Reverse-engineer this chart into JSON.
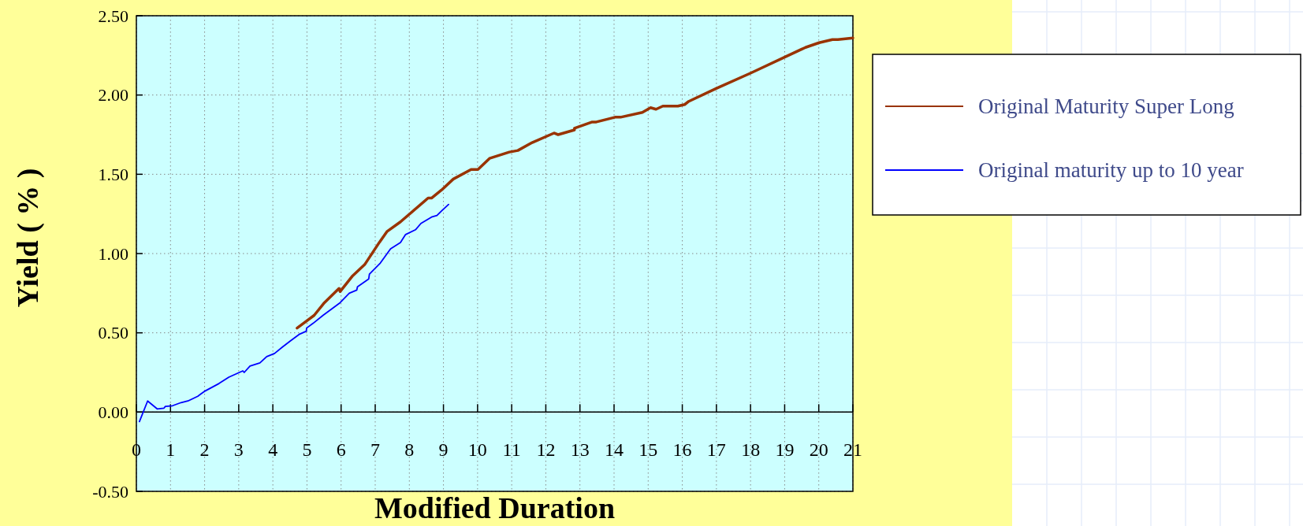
{
  "chart_data": {
    "type": "line",
    "xlabel": "Modified Duration",
    "ylabel": "Yield ( % )",
    "xlim": [
      0,
      21
    ],
    "xticks": [
      0,
      1,
      2,
      3,
      4,
      5,
      6,
      7,
      8,
      9,
      10,
      11,
      12,
      13,
      14,
      15,
      16,
      17,
      18,
      19,
      20,
      21
    ],
    "ylim": [
      -0.5,
      2.5
    ],
    "yticks": [
      {
        "value": -0.5,
        "label": "-0.50"
      },
      {
        "value": 0,
        "label": "0.00"
      },
      {
        "value": 0.5,
        "label": "0.50"
      },
      {
        "value": 1,
        "label": "1.00"
      },
      {
        "value": 1.5,
        "label": "1.50"
      },
      {
        "value": 2,
        "label": "2.00"
      },
      {
        "value": 2.5,
        "label": "2.50"
      }
    ],
    "grid": true,
    "legend": "right",
    "series": [
      {
        "name": "Original Maturity Super Long",
        "color": "#993300",
        "x": [
          4.71,
          5.02,
          5.21,
          5.51,
          5.94,
          5.97,
          6.34,
          6.69,
          7.12,
          7.35,
          7.74,
          8.55,
          8.65,
          8.94,
          9.29,
          9.81,
          10.01,
          10.35,
          10.93,
          11.18,
          11.6,
          12.24,
          12.36,
          12.84,
          12.84,
          13.36,
          13.48,
          14.03,
          14.19,
          14.83,
          15.07,
          15.23,
          15.43,
          15.87,
          16.07,
          16.19,
          16.98,
          18.02,
          19.01,
          19.61,
          20.01,
          20.4,
          20.56,
          21
        ],
        "values": [
          0.53,
          0.58,
          0.61,
          0.69,
          0.78,
          0.76,
          0.86,
          0.93,
          1.07,
          1.14,
          1.2,
          1.35,
          1.35,
          1.4,
          1.47,
          1.53,
          1.53,
          1.6,
          1.64,
          1.65,
          1.7,
          1.76,
          1.75,
          1.78,
          1.79,
          1.83,
          1.83,
          1.86,
          1.86,
          1.89,
          1.92,
          1.91,
          1.93,
          1.93,
          1.94,
          1.96,
          2.04,
          2.14,
          2.24,
          2.3,
          2.33,
          2.35,
          2.35,
          2.36
        ]
      },
      {
        "name": "Original maturity up to 10 year",
        "color": "#0000ff",
        "x": [
          0.09,
          0.33,
          0.61,
          0.81,
          0.85,
          1.06,
          1.31,
          1.51,
          1.8,
          1.99,
          2.42,
          2.71,
          3.12,
          3.16,
          3.33,
          3.62,
          3.82,
          4.05,
          4.28,
          4.52,
          4.77,
          4.98,
          4.99,
          5.18,
          5.47,
          5.72,
          5.97,
          6.24,
          6.46,
          6.48,
          6.81,
          6.83,
          7.15,
          7.45,
          7.74,
          7.89,
          8.18,
          8.34,
          8.65,
          8.81,
          8.95,
          9.15
        ],
        "values": [
          -0.06,
          0.07,
          0.02,
          0.025,
          0.036,
          0.04,
          0.06,
          0.07,
          0.1,
          0.13,
          0.18,
          0.22,
          0.26,
          0.25,
          0.29,
          0.31,
          0.35,
          0.37,
          0.41,
          0.45,
          0.49,
          0.51,
          0.53,
          0.56,
          0.61,
          0.65,
          0.69,
          0.75,
          0.77,
          0.79,
          0.84,
          0.87,
          0.94,
          1.03,
          1.07,
          1.12,
          1.15,
          1.19,
          1.23,
          1.24,
          1.27,
          1.31
        ]
      }
    ]
  }
}
